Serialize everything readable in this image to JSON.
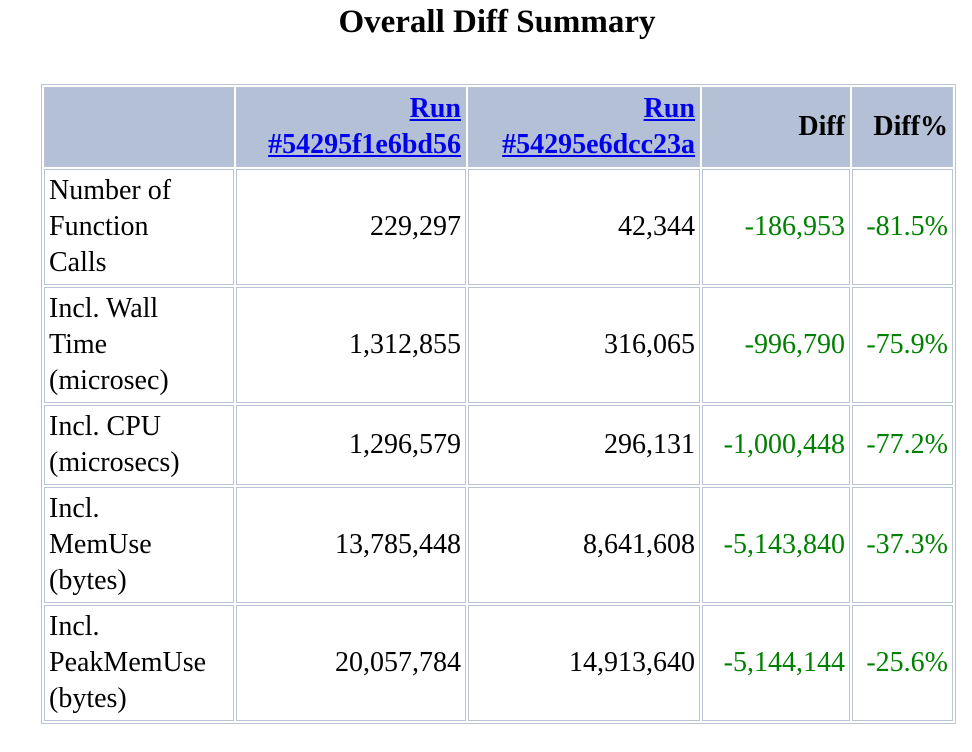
{
  "title": "Overall Diff Summary",
  "table": {
    "headers": {
      "run1_line1": "Run",
      "run1_line2": "#54295f1e6bd56",
      "run2_line1": "Run",
      "run2_line2": "#54295e6dcc23a",
      "diff": "Diff",
      "diff_pct": "Diff%"
    },
    "rows": [
      {
        "l1": "Number of",
        "l2": "Function",
        "l3": "Calls",
        "run1": "229,297",
        "run2": "42,344",
        "diff": "-186,953",
        "pct": "-81.5%"
      },
      {
        "l1": "Incl. Wall",
        "l2": "Time",
        "l3": "(microsec)",
        "run1": "1,312,855",
        "run2": "316,065",
        "diff": "-996,790",
        "pct": "-75.9%"
      },
      {
        "l1": "Incl. CPU",
        "l2": "(microsecs)",
        "run1": "1,296,579",
        "run2": "296,131",
        "diff": "-1,000,448",
        "pct": "-77.2%"
      },
      {
        "l1": "Incl.",
        "l2": "MemUse",
        "l3": "(bytes)",
        "run1": "13,785,448",
        "run2": "8,641,608",
        "diff": "-5,143,840",
        "pct": "-37.3%"
      },
      {
        "l1": "Incl.",
        "l2": "PeakMemUse",
        "l3": "(bytes)",
        "run1": "20,057,784",
        "run2": "14,913,640",
        "diff": "-5,144,144",
        "pct": "-25.6%"
      }
    ],
    "colors": {
      "header_bg": "#b4c0d6",
      "border": "#b9c3d6",
      "link": "#0000ee",
      "diff_text": "#008000"
    }
  }
}
